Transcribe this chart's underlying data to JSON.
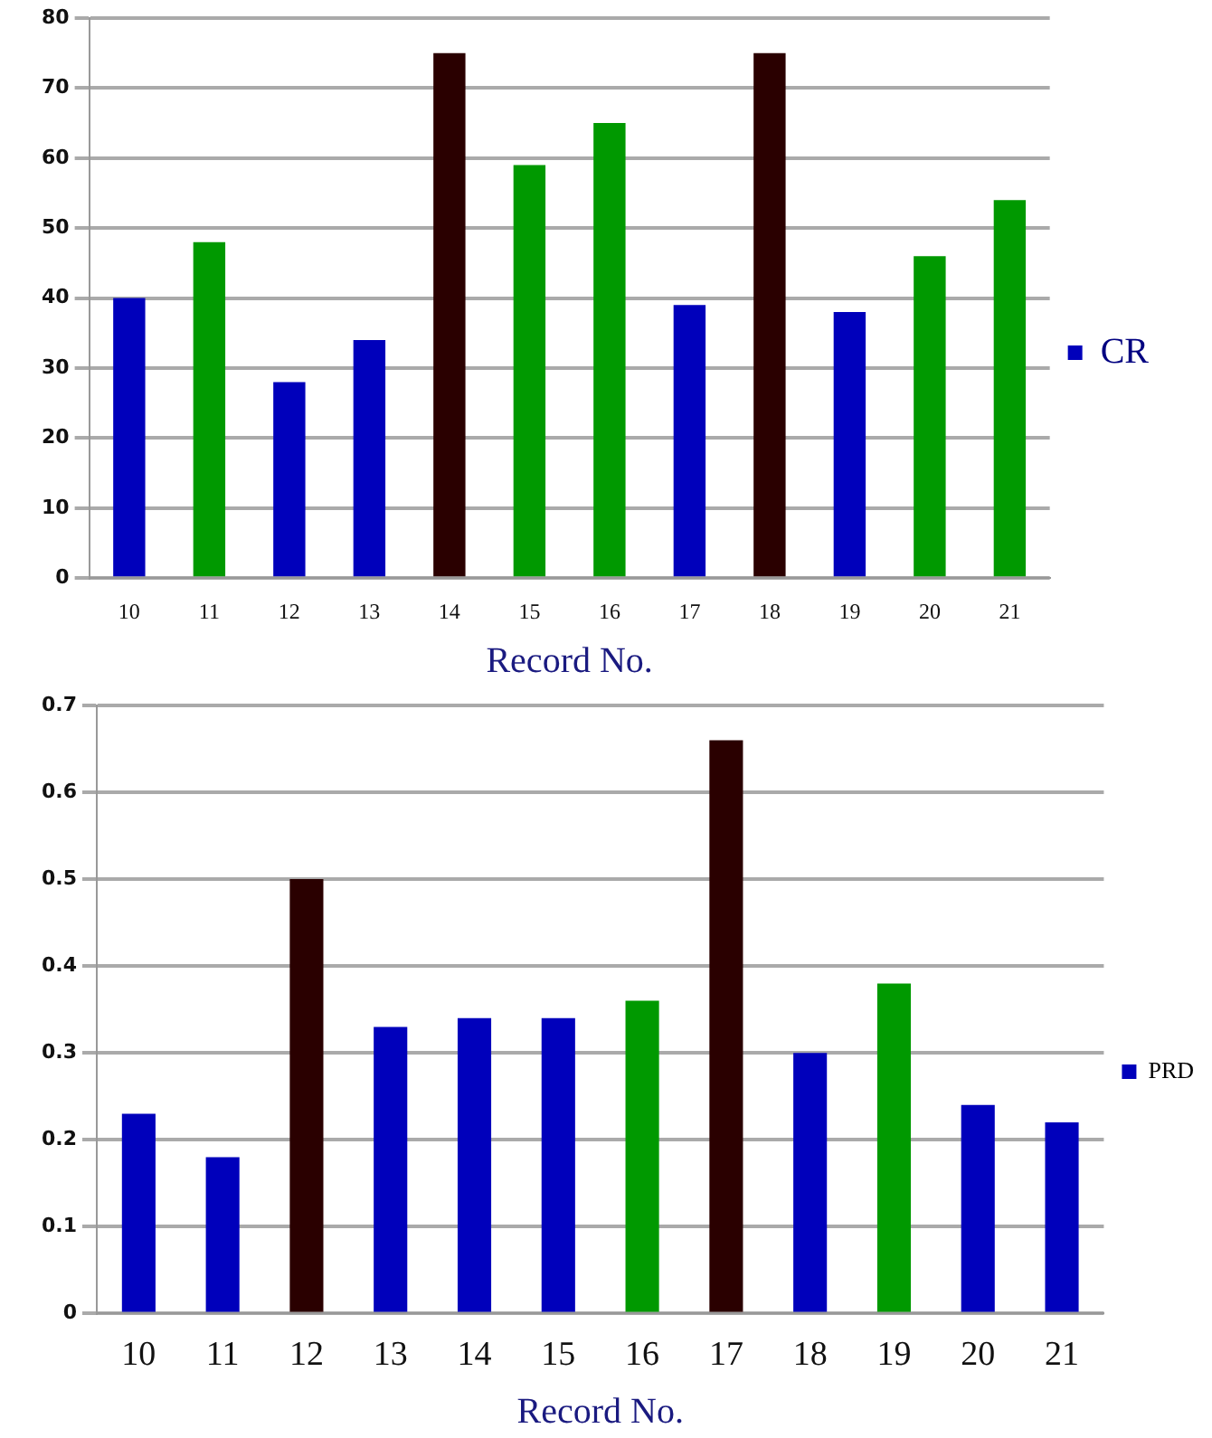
{
  "chart_data": [
    {
      "type": "bar",
      "categories": [
        "10",
        "11",
        "12",
        "13",
        "14",
        "15",
        "16",
        "17",
        "18",
        "19",
        "20",
        "21"
      ],
      "xlabel": "Record No.",
      "ylim": [
        0,
        80
      ],
      "yticks": [
        0,
        10,
        20,
        30,
        40,
        50,
        60,
        70,
        80
      ],
      "grid": "y",
      "legend": "right",
      "series": [
        {
          "name": "CR",
          "color": "#0000bb",
          "colors": [
            "#0000bb",
            "#009900",
            "#0000bb",
            "#0000bb",
            "#2a0000",
            "#009900",
            "#009900",
            "#0000bb",
            "#2a0000",
            "#0000bb",
            "#009900",
            "#009900"
          ],
          "values": [
            40,
            48,
            28,
            34,
            75,
            59,
            65,
            39,
            75,
            38,
            46,
            54
          ]
        }
      ]
    },
    {
      "type": "bar",
      "categories": [
        "10",
        "11",
        "12",
        "13",
        "14",
        "15",
        "16",
        "17",
        "18",
        "19",
        "20",
        "21"
      ],
      "xlabel": "Record No.",
      "ylim": [
        0,
        0.7
      ],
      "yticks": [
        0,
        0.1,
        0.2,
        0.3,
        0.4,
        0.5,
        0.6,
        0.7
      ],
      "grid": "y",
      "legend": "right",
      "series": [
        {
          "name": "PRD",
          "color": "#0000bb",
          "colors": [
            "#0000bb",
            "#0000bb",
            "#2a0000",
            "#0000bb",
            "#0000bb",
            "#0000bb",
            "#009900",
            "#2a0000",
            "#0000bb",
            "#009900",
            "#0000bb",
            "#0000bb"
          ],
          "values": [
            0.23,
            0.18,
            0.5,
            0.33,
            0.34,
            0.34,
            0.36,
            0.66,
            0.3,
            0.38,
            0.24,
            0.22
          ]
        }
      ]
    }
  ]
}
